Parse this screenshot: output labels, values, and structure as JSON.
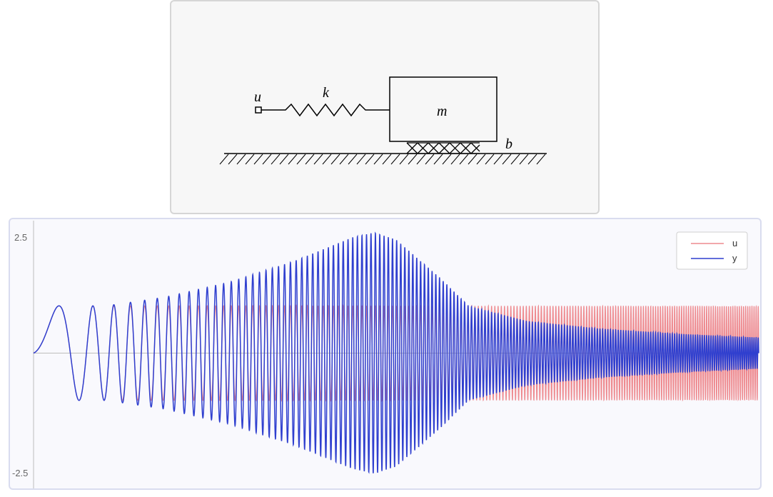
{
  "diagram": {
    "labels": {
      "u": "u",
      "k": "k",
      "m": "m",
      "b": "b"
    }
  },
  "chart_data": {
    "type": "line",
    "title": "",
    "xlabel": "",
    "ylabel": "",
    "ylim": [
      -2.5,
      2.5
    ],
    "y_ticks": [
      "2.5",
      "-2.5"
    ],
    "grid": false,
    "legend_position": "top-right",
    "x_domain": [
      0,
      1
    ],
    "series": [
      {
        "name": "u",
        "color": "#ee8a8f",
        "description_function": "sin chirp, amplitude 1",
        "amplitude_profile": [
          [
            0,
            1.0
          ],
          [
            1,
            1.0
          ]
        ]
      },
      {
        "name": "y",
        "color": "#2f3fcf",
        "amplitude_profile": [
          [
            0,
            1.0
          ],
          [
            0.1,
            1.0
          ],
          [
            0.18,
            1.18
          ],
          [
            0.27,
            1.5
          ],
          [
            0.36,
            1.95
          ],
          [
            0.44,
            2.45
          ],
          [
            0.47,
            2.55
          ],
          [
            0.5,
            2.4
          ],
          [
            0.56,
            1.6
          ],
          [
            0.6,
            1.0
          ],
          [
            0.68,
            0.68
          ],
          [
            0.78,
            0.52
          ],
          [
            0.9,
            0.4
          ],
          [
            1.0,
            0.33
          ]
        ]
      }
    ],
    "chirp": {
      "f0": 1.0,
      "f1": 350.0
    }
  }
}
